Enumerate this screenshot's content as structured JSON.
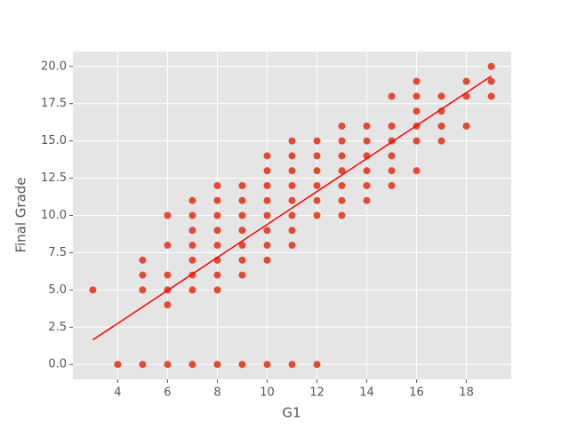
{
  "chart_data": {
    "type": "scatter",
    "xlabel": "G1",
    "ylabel": "Final Grade",
    "color": "#E24A33",
    "x": [
      3,
      4,
      5,
      5,
      5,
      5,
      6,
      6,
      6,
      6,
      6,
      6,
      7,
      7,
      7,
      7,
      7,
      7,
      7,
      7,
      8,
      8,
      8,
      8,
      8,
      8,
      8,
      8,
      8,
      9,
      9,
      9,
      9,
      9,
      9,
      9,
      9,
      10,
      10,
      10,
      10,
      10,
      10,
      10,
      10,
      10,
      11,
      11,
      11,
      11,
      11,
      11,
      11,
      11,
      11,
      12,
      12,
      12,
      12,
      12,
      12,
      12,
      13,
      13,
      13,
      13,
      13,
      13,
      13,
      14,
      14,
      14,
      14,
      14,
      14,
      15,
      15,
      15,
      15,
      15,
      15,
      16,
      16,
      16,
      16,
      16,
      16,
      17,
      17,
      17,
      17,
      18,
      18,
      18,
      19,
      19,
      19
    ],
    "values": [
      5,
      0,
      7,
      6,
      5,
      0,
      10,
      8,
      6,
      5,
      4,
      0,
      11,
      10,
      9,
      8,
      7,
      6,
      5,
      0,
      12,
      11,
      10,
      9,
      8,
      7,
      6,
      5,
      0,
      12,
      11,
      10,
      9,
      8,
      7,
      6,
      0,
      14,
      13,
      12,
      11,
      10,
      9,
      8,
      7,
      0,
      15,
      14,
      13,
      12,
      11,
      10,
      9,
      8,
      0,
      15,
      14,
      13,
      12,
      11,
      10,
      0,
      16,
      15,
      14,
      13,
      12,
      11,
      10,
      16,
      15,
      14,
      13,
      12,
      11,
      18,
      16,
      15,
      14,
      13,
      12,
      19,
      18,
      17,
      16,
      15,
      13,
      18,
      17,
      16,
      15,
      19,
      18,
      16,
      20,
      19,
      18
    ],
    "fit": {
      "x": [
        3,
        19
      ],
      "values": [
        1.65,
        19.35
      ],
      "color": "#ff0000"
    },
    "xlim": [
      2.2,
      19.8
    ],
    "ylim": [
      -1,
      21
    ],
    "xticks": [
      4,
      6,
      8,
      10,
      12,
      14,
      16,
      18
    ],
    "yticks": [
      {
        "value": 0,
        "label": "0.0"
      },
      2.5,
      {
        "value": 5,
        "label": "5.0"
      },
      7.5,
      {
        "value": 10,
        "label": "10.0"
      },
      12.5,
      {
        "value": 15,
        "label": "15.0"
      },
      17.5,
      {
        "value": 20,
        "label": "20.0"
      }
    ],
    "grid": true
  }
}
